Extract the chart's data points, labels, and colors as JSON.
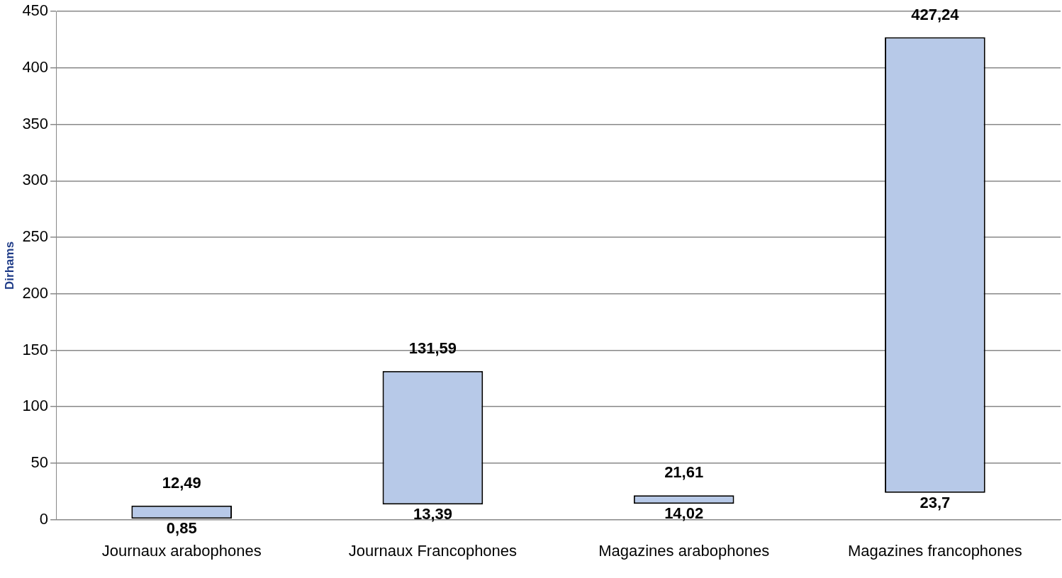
{
  "chart_data": {
    "type": "bar",
    "ylabel": "Dirhams",
    "categories": [
      "Journaux arabophones",
      "Journaux Francophones",
      "Magazines arabophones",
      "Magazines francophones"
    ],
    "base": [
      0.85,
      13.39,
      14.02,
      23.7
    ],
    "values": [
      11.64,
      118.2,
      7.59,
      403.54
    ],
    "color": "#b7c9e8",
    "ylim": [
      0,
      450
    ],
    "yticks": [
      0,
      50,
      100,
      150,
      200,
      250,
      300,
      350,
      400,
      450
    ],
    "grid": "y",
    "legend": false,
    "annotations": [
      {
        "text": "12,49",
        "x": "Journaux arabophones",
        "y": 12.49
      },
      {
        "text": "0,85",
        "x": "Journaux arabophones",
        "y": 0.85
      },
      {
        "text": "131,59",
        "x": "Journaux Francophones",
        "y": 131.59
      },
      {
        "text": "13,39",
        "x": "Journaux Francophones",
        "y": 13.39
      },
      {
        "text": "21,61",
        "x": "Magazines arabophones",
        "y": 21.61
      },
      {
        "text": "14,02",
        "x": "Magazines arabophones",
        "y": 14.02
      },
      {
        "text": "427,24",
        "x": "Magazines francophones",
        "y": 427.24
      },
      {
        "text": "23,7",
        "x": "Magazines francophones",
        "y": 23.7
      }
    ]
  }
}
